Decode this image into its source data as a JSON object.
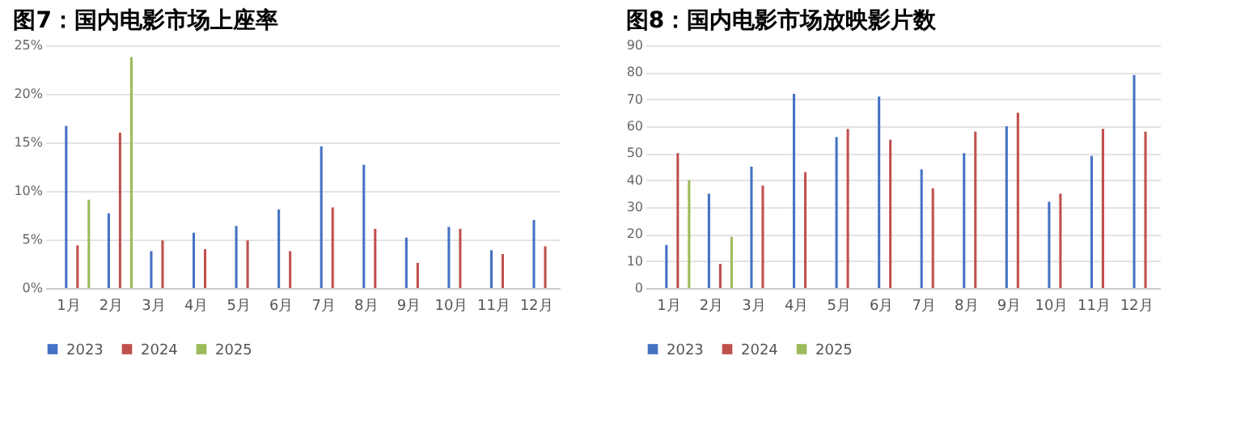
{
  "chart_data": [
    {
      "type": "bar",
      "title": "图7：国内电影市场上座率",
      "categories": [
        "1月",
        "2月",
        "3月",
        "4月",
        "5月",
        "6月",
        "7月",
        "8月",
        "9月",
        "10月",
        "11月",
        "12月"
      ],
      "series": [
        {
          "name": "2023",
          "color": "#4472c4",
          "values": [
            16.7,
            7.7,
            3.8,
            5.7,
            6.4,
            8.1,
            14.6,
            12.7,
            5.2,
            6.3,
            3.9,
            7.0
          ]
        },
        {
          "name": "2024",
          "color": "#c0504d",
          "values": [
            4.4,
            16.0,
            4.9,
            4.0,
            4.9,
            3.8,
            8.3,
            6.1,
            2.6,
            6.1,
            3.5,
            4.3
          ]
        },
        {
          "name": "2025",
          "color": "#9bbb59",
          "values": [
            9.1,
            23.8,
            null,
            null,
            null,
            null,
            null,
            null,
            null,
            null,
            null,
            null
          ]
        }
      ],
      "ylim": [
        0,
        25
      ],
      "yticks": [
        {
          "value": 0,
          "label": "0%"
        },
        {
          "value": 5,
          "label": "5%"
        },
        {
          "value": 10,
          "label": "10%"
        },
        {
          "value": 15,
          "label": "15%"
        },
        {
          "value": 20,
          "label": "20%"
        },
        {
          "value": 25,
          "label": "25%"
        }
      ],
      "grid": "y",
      "legend": "bottom"
    },
    {
      "type": "bar",
      "title": "图8：国内电影市场放映影片数",
      "categories": [
        "1月",
        "2月",
        "3月",
        "4月",
        "5月",
        "6月",
        "7月",
        "8月",
        "9月",
        "10月",
        "11月",
        "12月"
      ],
      "series": [
        {
          "name": "2023",
          "color": "#4472c4",
          "values": [
            16,
            35,
            45,
            72,
            56,
            71,
            44,
            50,
            60,
            32,
            49,
            79
          ]
        },
        {
          "name": "2024",
          "color": "#c0504d",
          "values": [
            50,
            9,
            38,
            43,
            59,
            55,
            37,
            58,
            65,
            35,
            59,
            58
          ]
        },
        {
          "name": "2025",
          "color": "#9bbb59",
          "values": [
            40,
            19,
            null,
            null,
            null,
            null,
            null,
            null,
            null,
            null,
            null,
            null
          ]
        }
      ],
      "ylim": [
        0,
        90
      ],
      "yticks": [
        0,
        10,
        20,
        30,
        40,
        50,
        60,
        70,
        80,
        90
      ],
      "grid": "y",
      "legend": "bottom"
    }
  ]
}
